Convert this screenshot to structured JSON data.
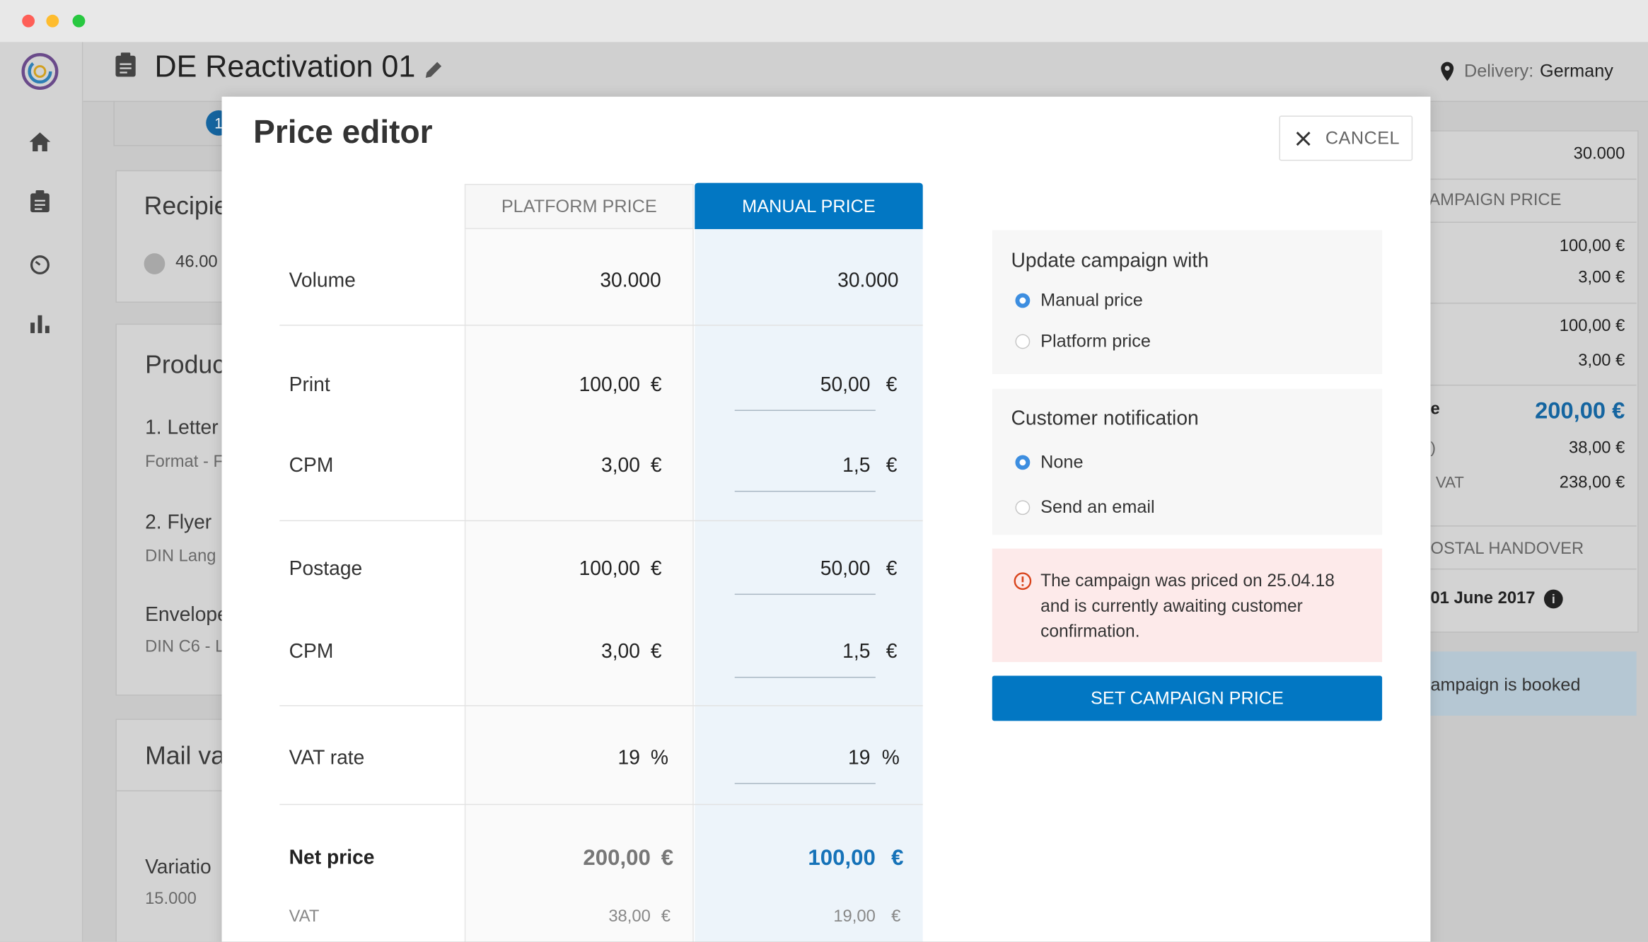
{
  "header": {
    "title": "DE Reactivation 01",
    "delivery_label": "Delivery:",
    "delivery_value": "Germany"
  },
  "background": {
    "left": {
      "step_badge": "1",
      "recipients_heading": "Recipie",
      "recipients_count": "46.00",
      "products_heading": "Produc",
      "product_1": "1. Letter",
      "product_1_detail": "Format - F",
      "product_2": "2. Flyer",
      "product_2_detail": "DIN Lang",
      "product_3": "Envelope",
      "product_3_detail": "DIN C6 - L",
      "mail_heading": "Mail va",
      "variation_label": "Variatio",
      "variation_count": "15.000"
    },
    "right": {
      "volume": "30.000",
      "price_heading": "CAMPAIGN PRICE",
      "print": "100,00 €",
      "print_cpm": "3,00 €",
      "postage": "100,00 €",
      "postage_cpm": "3,00 €",
      "net_label": "e",
      "net": "200,00 €",
      "vat_label": ")",
      "vat": "38,00 €",
      "gross_label": "VAT",
      "gross": "238,00 €",
      "handover_heading": "OSTAL HANDOVER",
      "handover_date": "01 June 2017",
      "status": "ampaign is booked"
    }
  },
  "modal": {
    "title": "Price editor",
    "cancel": "CANCEL",
    "table": {
      "headers": [
        "PLATFORM PRICE",
        "MANUAL PRICE"
      ],
      "currency": "€",
      "percent": "%",
      "rows": [
        {
          "label": "Volume",
          "platform": "30.000",
          "manual": "30.000"
        },
        {
          "label": "Print",
          "platform": "100,00",
          "manual": "50,00"
        },
        {
          "label": "CPM",
          "platform": "3,00",
          "manual": "1,5"
        },
        {
          "label": "Postage",
          "platform": "100,00",
          "manual": "50,00"
        },
        {
          "label": "CPM",
          "platform": "3,00",
          "manual": "1,5"
        },
        {
          "label": "VAT rate",
          "platform": "19",
          "manual": "19"
        },
        {
          "label": "Net price",
          "platform": "200,00",
          "manual": "100,00"
        },
        {
          "label": "VAT",
          "platform": "38,00",
          "manual": "19,00"
        }
      ]
    },
    "update": {
      "heading": "Update campaign with",
      "options": [
        "Manual price",
        "Platform price"
      ]
    },
    "notification": {
      "heading": "Customer notification",
      "options": [
        "None",
        "Send an email"
      ]
    },
    "alert": "The campaign was priced on 25.04.18 and is currently awaiting customer confirmation.",
    "submit": "SET CAMPAIGN PRICE"
  }
}
